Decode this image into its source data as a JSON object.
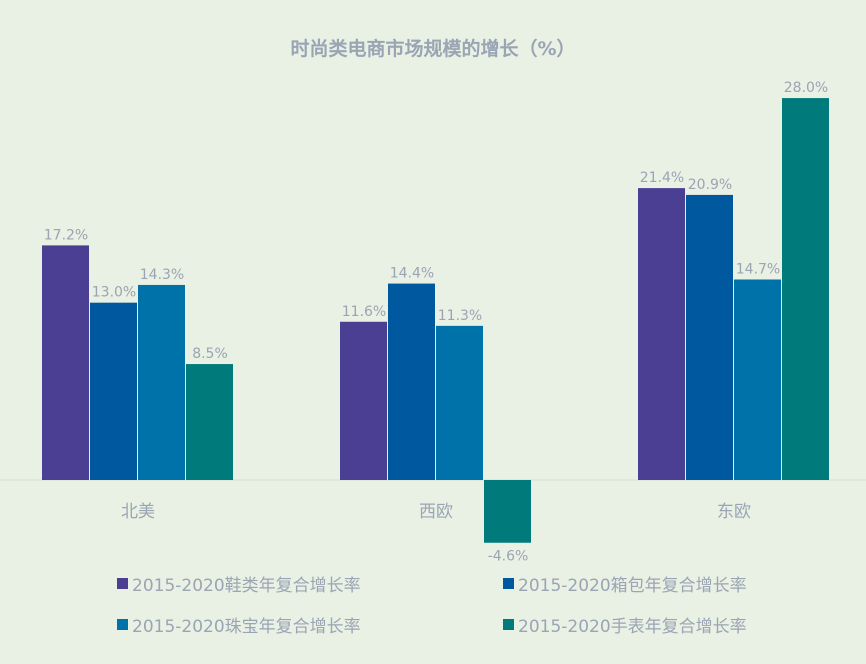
{
  "chart_data": {
    "type": "bar",
    "title": "时尚类电商市场规模的增长（%）",
    "categories": [
      "北美",
      "西欧",
      "东欧"
    ],
    "series": [
      {
        "name": "2015-2020鞋类年复合增长率",
        "color": "#4b3f94",
        "values": [
          17.2,
          11.6,
          21.4
        ]
      },
      {
        "name": "2015-2020箱包年复合增长率",
        "color": "#00589f",
        "values": [
          13.0,
          14.4,
          20.9
        ]
      },
      {
        "name": "2015-2020珠宝年复合增长率",
        "color": "#0072aa",
        "values": [
          14.3,
          11.3,
          14.7
        ]
      },
      {
        "name": "2015-2020手表年复合增长率",
        "color": "#007a7a",
        "values": [
          8.5,
          -4.6,
          28.0
        ]
      }
    ],
    "data_labels": [
      [
        "17.2%",
        "11.6%",
        "21.4%"
      ],
      [
        "13.0%",
        "14.4%",
        "20.9%"
      ],
      [
        "14.3%",
        "11.3%",
        "14.7%"
      ],
      [
        "8.5%",
        "-4.6%",
        "28.0%"
      ]
    ],
    "xlabel": "",
    "ylabel": "",
    "grid": false,
    "legend": "bottom"
  }
}
